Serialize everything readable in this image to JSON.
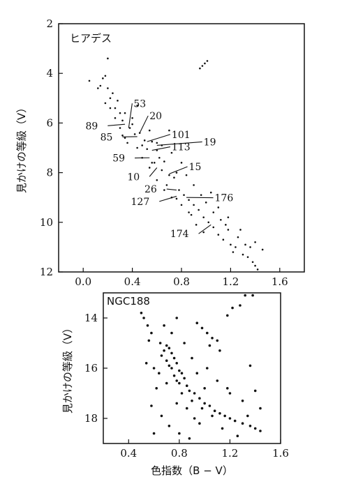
{
  "chart_data": [
    {
      "type": "scatter",
      "title": "ヒアデス",
      "xlabel": "",
      "ylabel": "見かけの等級（V）",
      "xlim": [
        -0.2,
        1.8
      ],
      "ylim": [
        12,
        2
      ],
      "xticks": [
        "0.0",
        "0.4",
        "0.8",
        "1.2",
        "1.6"
      ],
      "yticks": [
        "2",
        "4",
        "6",
        "8",
        "10",
        "12"
      ],
      "grid": false,
      "series": [
        {
          "values": [
            [
              0.2,
              3.4
            ],
            [
              0.18,
              4.1
            ],
            [
              0.16,
              4.2
            ],
            [
              0.05,
              4.3
            ],
            [
              0.14,
              4.5
            ],
            [
              0.24,
              4.8
            ],
            [
              0.22,
              5.0
            ],
            [
              0.28,
              5.1
            ],
            [
              0.26,
              5.4
            ],
            [
              0.3,
              5.6
            ],
            [
              0.34,
              5.6
            ],
            [
              0.32,
              5.9
            ],
            [
              0.4,
              6.05
            ],
            [
              0.38,
              6.2
            ],
            [
              0.42,
              6.45
            ],
            [
              0.46,
              6.4
            ],
            [
              0.5,
              6.7
            ],
            [
              0.48,
              6.9
            ],
            [
              0.56,
              6.75
            ],
            [
              0.52,
              7.05
            ],
            [
              0.6,
              7.1
            ],
            [
              0.62,
              7.4
            ],
            [
              0.58,
              7.6
            ],
            [
              0.66,
              7.55
            ],
            [
              0.64,
              7.9
            ],
            [
              0.7,
              8.1
            ],
            [
              0.74,
              8.2
            ],
            [
              0.68,
              8.5
            ],
            [
              0.78,
              8.7
            ],
            [
              0.82,
              8.9
            ],
            [
              0.76,
              9.05
            ],
            [
              0.86,
              9.1
            ],
            [
              0.9,
              9.3
            ],
            [
              0.94,
              9.5
            ],
            [
              0.88,
              9.7
            ],
            [
              0.98,
              9.8
            ],
            [
              1.02,
              10.0
            ],
            [
              1.06,
              10.2
            ],
            [
              1.1,
              10.5
            ],
            [
              1.14,
              10.7
            ],
            [
              1.2,
              10.9
            ],
            [
              1.24,
              11.0
            ],
            [
              1.3,
              11.3
            ],
            [
              1.34,
              11.4
            ],
            [
              1.38,
              11.6
            ],
            [
              1.4,
              11.75
            ],
            [
              1.42,
              11.9
            ],
            [
              0.95,
              3.8
            ],
            [
              0.97,
              3.7
            ],
            [
              0.99,
              3.6
            ],
            [
              1.01,
              3.5
            ],
            [
              0.12,
              4.6
            ],
            [
              0.2,
              4.6
            ],
            [
              0.34,
              6.6
            ],
            [
              0.3,
              6.2
            ],
            [
              0.44,
              5.3
            ],
            [
              0.54,
              6.3
            ],
            [
              0.6,
              6.8
            ],
            [
              0.72,
              7.2
            ],
            [
              0.8,
              7.6
            ],
            [
              0.84,
              8.1
            ],
            [
              0.9,
              8.5
            ],
            [
              0.96,
              8.9
            ],
            [
              1.0,
              9.2
            ],
            [
              1.06,
              9.6
            ],
            [
              1.12,
              9.9
            ],
            [
              1.18,
              10.3
            ],
            [
              1.26,
              10.6
            ],
            [
              1.32,
              10.9
            ],
            [
              1.36,
              11.0
            ],
            [
              1.22,
              11.2
            ],
            [
              1.16,
              10.1
            ],
            [
              0.98,
              10.4
            ],
            [
              0.92,
              10.1
            ],
            [
              0.86,
              9.6
            ],
            [
              0.8,
              9.3
            ],
            [
              0.72,
              9.0
            ],
            [
              0.66,
              8.7
            ],
            [
              0.6,
              8.3
            ],
            [
              0.54,
              7.8
            ],
            [
              0.48,
              7.4
            ],
            [
              0.44,
              7.0
            ],
            [
              0.36,
              6.8
            ],
            [
              0.32,
              6.5
            ],
            [
              0.26,
              5.8
            ],
            [
              0.22,
              5.4
            ],
            [
              0.18,
              5.2
            ],
            [
              1.04,
              8.8
            ],
            [
              1.1,
              9.4
            ],
            [
              1.18,
              9.8
            ],
            [
              1.28,
              10.3
            ],
            [
              1.4,
              10.8
            ],
            [
              1.46,
              11.1
            ],
            [
              0.7,
              6.3
            ],
            [
              0.64,
              6.9
            ],
            [
              0.4,
              5.8
            ],
            [
              0.56,
              7.6
            ],
            [
              0.76,
              8.0
            ]
          ]
        }
      ],
      "annotations": [
        {
          "text": "53",
          "x": 0.41,
          "y": 5.35,
          "tx": 0.37,
          "ty": 6.2
        },
        {
          "text": "20",
          "x": 0.54,
          "y": 5.85,
          "tx": 0.46,
          "ty": 6.4
        },
        {
          "text": "89",
          "x": 0.12,
          "y": 6.25,
          "tx": 0.34,
          "ty": 6.05
        },
        {
          "text": "85",
          "x": 0.24,
          "y": 6.7,
          "tx": 0.44,
          "ty": 6.55
        },
        {
          "text": "101",
          "x": 0.72,
          "y": 6.6,
          "tx": 0.52,
          "ty": 6.75
        },
        {
          "text": "19",
          "x": 0.98,
          "y": 6.9,
          "tx": 0.6,
          "ty": 6.9
        },
        {
          "text": "113",
          "x": 0.72,
          "y": 7.1,
          "tx": 0.56,
          "ty": 7.1
        },
        {
          "text": "59",
          "x": 0.34,
          "y": 7.55,
          "tx": 0.54,
          "ty": 7.4
        },
        {
          "text": "10",
          "x": 0.46,
          "y": 8.3,
          "tx": 0.6,
          "ty": 7.8
        },
        {
          "text": "15",
          "x": 0.86,
          "y": 7.9,
          "tx": 0.7,
          "ty": 8.05
        },
        {
          "text": "26",
          "x": 0.6,
          "y": 8.8,
          "tx": 0.76,
          "ty": 8.7
        },
        {
          "text": "127",
          "x": 0.54,
          "y": 9.3,
          "tx": 0.76,
          "ty": 8.95
        },
        {
          "text": "176",
          "x": 1.07,
          "y": 9.15,
          "tx": 0.84,
          "ty": 9.0
        },
        {
          "text": "174",
          "x": 0.86,
          "y": 10.6,
          "tx": 1.04,
          "ty": 10.1
        }
      ]
    },
    {
      "type": "scatter",
      "title": "NGC188",
      "xlabel": "色指数（B − V）",
      "ylabel": "見かけの等級（V）",
      "xlim": [
        0.2,
        1.6
      ],
      "ylim": [
        19,
        13
      ],
      "xticks": [
        "0.4",
        "0.8",
        "1.2",
        "1.6"
      ],
      "yticks": [
        "14",
        "16",
        "18"
      ],
      "grid": false,
      "series": [
        {
          "values": [
            [
              0.65,
              15.0
            ],
            [
              0.7,
              15.1
            ],
            [
              0.68,
              15.3
            ],
            [
              0.72,
              15.2
            ],
            [
              0.66,
              15.5
            ],
            [
              0.74,
              15.4
            ],
            [
              0.7,
              15.7
            ],
            [
              0.76,
              15.6
            ],
            [
              0.72,
              15.9
            ],
            [
              0.78,
              15.8
            ],
            [
              0.74,
              16.0
            ],
            [
              0.8,
              16.1
            ],
            [
              0.76,
              16.3
            ],
            [
              0.82,
              16.2
            ],
            [
              0.78,
              16.5
            ],
            [
              0.84,
              16.4
            ],
            [
              0.8,
              16.6
            ],
            [
              0.86,
              16.7
            ],
            [
              0.88,
              16.9
            ],
            [
              0.92,
              17.0
            ],
            [
              0.96,
              17.2
            ],
            [
              0.9,
              17.3
            ],
            [
              1.0,
              17.4
            ],
            [
              1.04,
              17.5
            ],
            [
              0.98,
              17.6
            ],
            [
              1.08,
              17.7
            ],
            [
              1.12,
              17.8
            ],
            [
              1.06,
              17.9
            ],
            [
              1.16,
              17.9
            ],
            [
              1.2,
              18.0
            ],
            [
              1.24,
              18.1
            ],
            [
              1.3,
              18.2
            ],
            [
              1.36,
              18.3
            ],
            [
              1.4,
              18.4
            ],
            [
              0.5,
              13.8
            ],
            [
              0.52,
              14.0
            ],
            [
              0.55,
              14.3
            ],
            [
              0.58,
              14.6
            ],
            [
              0.56,
              14.9
            ],
            [
              0.94,
              14.2
            ],
            [
              0.98,
              14.4
            ],
            [
              1.02,
              14.6
            ],
            [
              1.06,
              14.8
            ],
            [
              1.1,
              14.9
            ],
            [
              1.04,
              15.1
            ],
            [
              1.12,
              15.3
            ],
            [
              1.18,
              13.9
            ],
            [
              1.22,
              13.6
            ],
            [
              1.28,
              13.5
            ],
            [
              1.32,
              13.1
            ],
            [
              1.38,
              13.1
            ],
            [
              0.6,
              16.0
            ],
            [
              0.62,
              16.8
            ],
            [
              0.58,
              17.5
            ],
            [
              0.66,
              17.9
            ],
            [
              0.72,
              18.3
            ],
            [
              0.8,
              18.6
            ],
            [
              0.88,
              18.8
            ],
            [
              0.96,
              18.2
            ],
            [
              1.0,
              16.8
            ],
            [
              1.1,
              16.5
            ],
            [
              1.2,
              17.0
            ],
            [
              1.3,
              17.3
            ],
            [
              1.4,
              16.9
            ],
            [
              1.44,
              17.6
            ],
            [
              0.54,
              15.8
            ],
            [
              0.6,
              18.6
            ],
            [
              1.26,
              18.7
            ],
            [
              1.44,
              18.5
            ],
            [
              0.74,
              14.6
            ],
            [
              0.84,
              15.0
            ],
            [
              0.9,
              15.6
            ],
            [
              0.7,
              16.6
            ],
            [
              0.64,
              16.2
            ],
            [
              0.86,
              17.6
            ],
            [
              0.94,
              16.2
            ],
            [
              1.02,
              16.0
            ],
            [
              0.82,
              17.0
            ],
            [
              0.78,
              17.4
            ],
            [
              1.14,
              18.4
            ],
            [
              1.34,
              17.9
            ],
            [
              0.92,
              18.0
            ],
            [
              1.18,
              16.8
            ],
            [
              1.36,
              15.9
            ],
            [
              0.68,
              14.3
            ],
            [
              0.78,
              14.0
            ]
          ]
        }
      ]
    }
  ]
}
